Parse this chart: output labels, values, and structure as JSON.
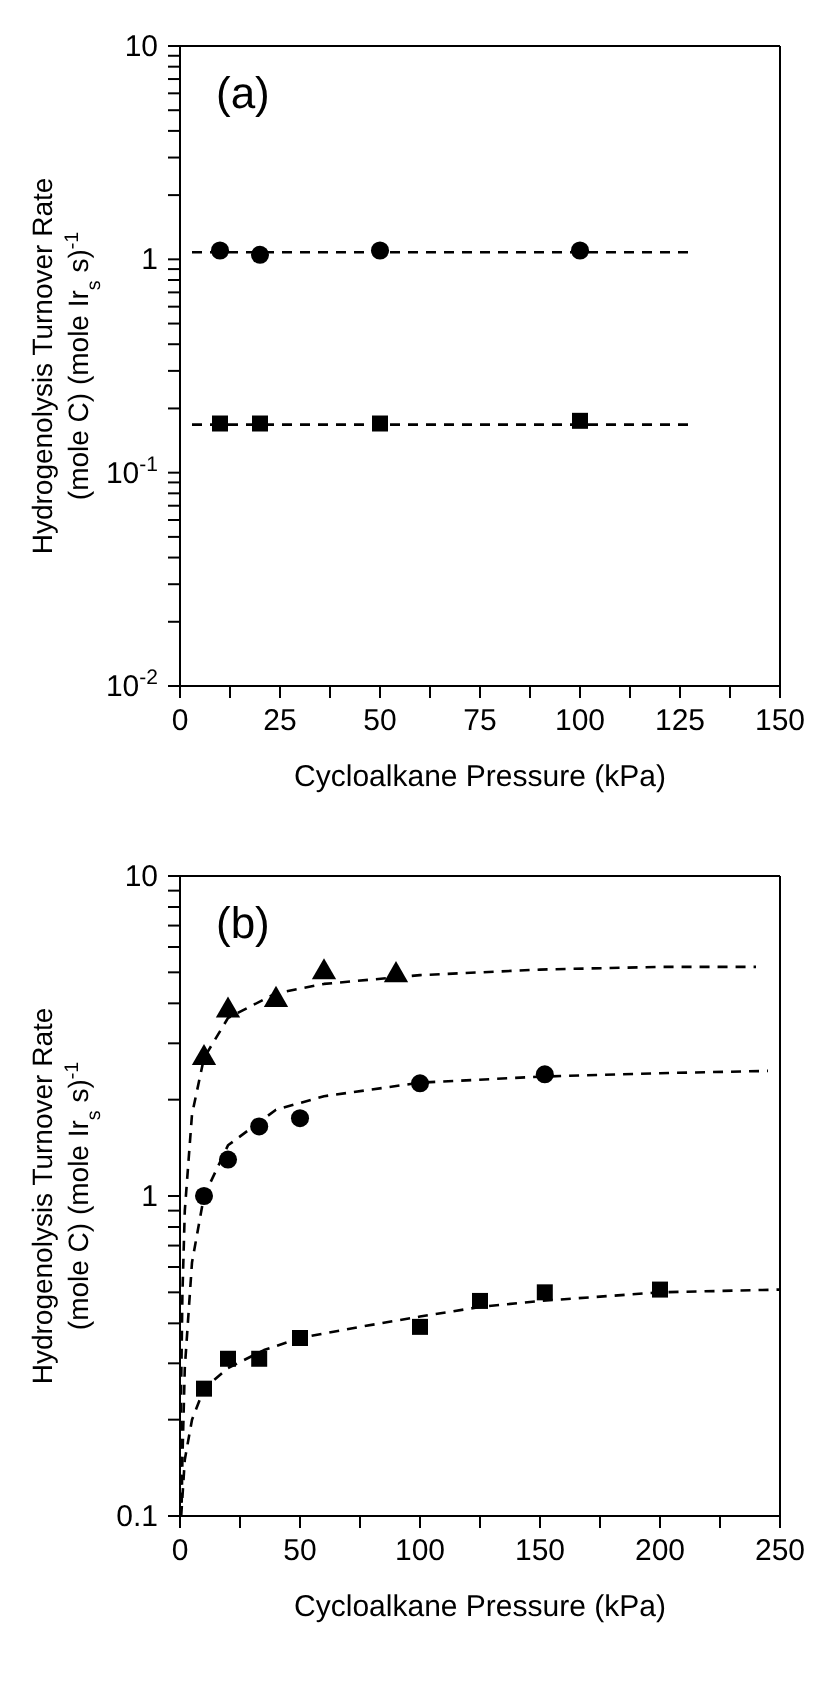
{
  "chart_data": [
    {
      "type": "scatter",
      "annotations": [
        "(a)"
      ],
      "xlabel": "Cycloalkane Pressure (kPa)",
      "ylabel": "Hydrogenolysis Turnover Rate\n(mole C) (mole Ir$_{s}$ s)$^{-1}$",
      "log": "y",
      "xlim": [
        0,
        150
      ],
      "xticks": [
        0,
        {
          "value": 12.5,
          "label": null
        },
        25,
        {
          "value": 37.5,
          "label": null
        },
        50,
        {
          "value": 62.5,
          "label": null
        },
        75,
        {
          "value": 87.5,
          "label": null
        },
        100,
        {
          "value": 112.5,
          "label": null
        },
        125,
        {
          "value": 137.5,
          "label": null
        },
        150
      ],
      "ylim": [
        0.01,
        10
      ],
      "yticks": [
        {
          "value": 0.01,
          "label": "10$^{-2}$"
        },
        {
          "value": 0.02,
          "label": null
        },
        {
          "value": 0.03,
          "label": null
        },
        {
          "value": 0.04,
          "label": null
        },
        {
          "value": 0.05,
          "label": null
        },
        {
          "value": 0.06,
          "label": null
        },
        {
          "value": 0.07,
          "label": null
        },
        {
          "value": 0.08,
          "label": null
        },
        {
          "value": 0.09,
          "label": null
        },
        {
          "value": 0.1,
          "label": "10$^{-1}$"
        },
        {
          "value": 0.2,
          "label": null
        },
        {
          "value": 0.3,
          "label": null
        },
        {
          "value": 0.4,
          "label": null
        },
        {
          "value": 0.5,
          "label": null
        },
        {
          "value": 0.6,
          "label": null
        },
        {
          "value": 0.7,
          "label": null
        },
        {
          "value": 0.8,
          "label": null
        },
        {
          "value": 0.9,
          "label": null
        },
        1,
        {
          "value": 2,
          "label": null
        },
        {
          "value": 3,
          "label": null
        },
        {
          "value": 4,
          "label": null
        },
        {
          "value": 5,
          "label": null
        },
        {
          "value": 6,
          "label": null
        },
        {
          "value": 7,
          "label": null
        },
        {
          "value": 8,
          "label": null
        },
        {
          "value": 9,
          "label": null
        },
        10
      ],
      "series": [
        {
          "marker": "circle",
          "color": "#000000",
          "x": [
            10,
            20,
            50,
            100
          ],
          "values": [
            1.1,
            1.05,
            1.1,
            1.1
          ]
        },
        {
          "marker": "square",
          "color": "#000000",
          "x": [
            10,
            20,
            50,
            100
          ],
          "values": [
            0.17,
            0.17,
            0.17,
            0.175
          ]
        },
        {
          "type": "line",
          "marker": "none",
          "line_style": "dashed",
          "color": "#000000",
          "x": [
            3,
            128
          ],
          "values": [
            1.08,
            1.08
          ]
        },
        {
          "type": "line",
          "marker": "none",
          "line_style": "dashed",
          "color": "#000000",
          "x": [
            3,
            127
          ],
          "values": [
            0.168,
            0.168
          ]
        }
      ]
    },
    {
      "type": "scatter",
      "annotations": [
        "(b)"
      ],
      "xlabel": "Cycloalkane Pressure (kPa)",
      "ylabel": "Hydrogenolysis Turnover Rate\n(mole C) (mole Ir$_{s}$ s)$^{-1}$",
      "log": "y",
      "xlim": [
        0,
        250
      ],
      "xticks": [
        0,
        {
          "value": 25,
          "label": null
        },
        50,
        {
          "value": 75,
          "label": null
        },
        100,
        {
          "value": 125,
          "label": null
        },
        150,
        {
          "value": 175,
          "label": null
        },
        200,
        {
          "value": 225,
          "label": null
        },
        250
      ],
      "ylim": [
        0.1,
        10
      ],
      "yticks": [
        0.1,
        {
          "value": 0.2,
          "label": null
        },
        {
          "value": 0.3,
          "label": null
        },
        {
          "value": 0.4,
          "label": null
        },
        {
          "value": 0.5,
          "label": null
        },
        {
          "value": 0.6,
          "label": null
        },
        {
          "value": 0.7,
          "label": null
        },
        {
          "value": 0.8,
          "label": null
        },
        {
          "value": 0.9,
          "label": null
        },
        1,
        {
          "value": 2,
          "label": null
        },
        {
          "value": 3,
          "label": null
        },
        {
          "value": 4,
          "label": null
        },
        {
          "value": 5,
          "label": null
        },
        {
          "value": 6,
          "label": null
        },
        {
          "value": 7,
          "label": null
        },
        {
          "value": 8,
          "label": null
        },
        {
          "value": 9,
          "label": null
        },
        10
      ],
      "series": [
        {
          "marker": "triangle",
          "color": "#000000",
          "x": [
            10,
            20,
            40,
            60,
            90
          ],
          "values": [
            2.7,
            3.8,
            4.1,
            5.0,
            4.9
          ]
        },
        {
          "marker": "circle",
          "color": "#000000",
          "x": [
            10,
            20,
            33,
            50,
            100,
            152
          ],
          "values": [
            1.0,
            1.3,
            1.65,
            1.75,
            2.25,
            2.4
          ]
        },
        {
          "marker": "square",
          "color": "#000000",
          "x": [
            10,
            20,
            33,
            50,
            100,
            125,
            152,
            200
          ],
          "values": [
            0.25,
            0.31,
            0.31,
            0.36,
            0.39,
            0.47,
            0.5,
            0.51
          ]
        },
        {
          "type": "line",
          "marker": "none",
          "line_style": "dashed",
          "color": "#000000",
          "x": [
            0.2,
            0.5,
            1,
            2,
            5,
            10,
            20,
            40,
            60,
            100,
            150,
            200,
            240
          ],
          "values": [
            0.11,
            0.26,
            0.49,
            0.9,
            1.8,
            2.7,
            3.6,
            4.3,
            4.6,
            4.9,
            5.1,
            5.2,
            5.2
          ]
        },
        {
          "type": "line",
          "marker": "none",
          "line_style": "dashed",
          "color": "#000000",
          "x": [
            0.7,
            1,
            2,
            5,
            10,
            20,
            40,
            60,
            100,
            150,
            200,
            245
          ],
          "values": [
            0.11,
            0.15,
            0.29,
            0.62,
            1.0,
            1.44,
            1.86,
            2.05,
            2.26,
            2.36,
            2.42,
            2.46
          ]
        },
        {
          "type": "line",
          "marker": "none",
          "line_style": "dashed",
          "color": "#000000",
          "x": [
            0.5,
            2,
            5,
            10,
            20,
            35,
            50,
            75,
            100,
            125,
            150,
            200,
            250
          ],
          "values": [
            0.1,
            0.15,
            0.2,
            0.25,
            0.29,
            0.33,
            0.36,
            0.39,
            0.42,
            0.45,
            0.47,
            0.5,
            0.51
          ]
        }
      ]
    }
  ]
}
